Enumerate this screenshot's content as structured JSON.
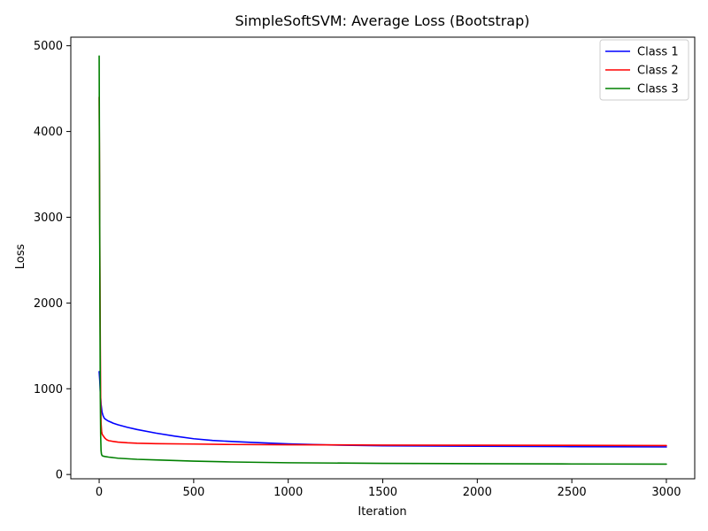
{
  "chart_data": {
    "type": "line",
    "title": "SimpleSoftSVM: Average Loss (Bootstrap)",
    "xlabel": "Iteration",
    "ylabel": "Loss",
    "xlim": [
      -150,
      3150
    ],
    "ylim": [
      -50,
      5100
    ],
    "xticks": [
      0,
      500,
      1000,
      1500,
      2000,
      2500,
      3000
    ],
    "yticks": [
      0,
      1000,
      2000,
      3000,
      4000,
      5000
    ],
    "xtick_labels": [
      "0",
      "500",
      "1000",
      "1500",
      "2000",
      "2500",
      "3000"
    ],
    "ytick_labels": [
      "0",
      "1000",
      "2000",
      "3000",
      "4000",
      "5000"
    ],
    "grid": false,
    "legend_position": "top-right",
    "series": [
      {
        "name": "Class 1",
        "color": "#0000ff",
        "x": [
          0,
          3,
          6,
          10,
          15,
          20,
          25,
          30,
          40,
          50,
          75,
          100,
          150,
          200,
          300,
          400,
          500,
          600,
          700,
          800,
          1000,
          1200,
          1500,
          2000,
          2500,
          3000
        ],
        "y": [
          1200,
          1100,
          950,
          820,
          730,
          690,
          665,
          650,
          635,
          622,
          598,
          580,
          550,
          525,
          483,
          447,
          417,
          397,
          385,
          375,
          357,
          345,
          335,
          330,
          325,
          322
        ]
      },
      {
        "name": "Class 2",
        "color": "#ff0000",
        "x": [
          0,
          2,
          4,
          6,
          8,
          10,
          13,
          16,
          20,
          25,
          30,
          40,
          50,
          75,
          100,
          150,
          200,
          300,
          500,
          700,
          1000,
          1500,
          2000,
          2500,
          3000
        ],
        "y": [
          4400,
          3500,
          2400,
          1500,
          900,
          600,
          500,
          470,
          455,
          440,
          425,
          405,
          395,
          385,
          378,
          370,
          365,
          360,
          355,
          350,
          347,
          343,
          341,
          340,
          338
        ]
      },
      {
        "name": "Class 3",
        "color": "#008000",
        "x": [
          0,
          2,
          4,
          6,
          8,
          10,
          12,
          15,
          20,
          30,
          50,
          100,
          200,
          300,
          500,
          700,
          1000,
          1500,
          2000,
          2500,
          3000
        ],
        "y": [
          4880,
          3500,
          2000,
          900,
          450,
          280,
          240,
          222,
          215,
          210,
          203,
          190,
          177,
          170,
          156,
          146,
          137,
          130,
          126,
          123,
          121
        ]
      }
    ]
  }
}
